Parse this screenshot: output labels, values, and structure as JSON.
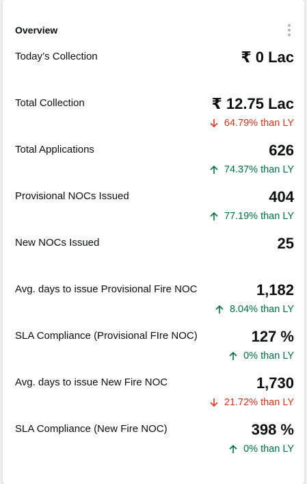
{
  "card": {
    "title": "Overview"
  },
  "colors": {
    "up": "#00703c",
    "down": "#d4351c"
  },
  "metrics": [
    {
      "label": "Today’s Collection",
      "value": "₹ 0 Lac"
    },
    {
      "label": "Total Collection",
      "value": "₹ 12.75 Lac",
      "change": "64.79% than LY",
      "trend": "down",
      "trend_icon": "arrow-down-icon"
    },
    {
      "label": "Total Applications",
      "value": "626",
      "change": "74.37% than LY",
      "trend": "up",
      "trend_icon": "arrow-up-icon"
    },
    {
      "label": "Provisional NOCs Issued",
      "value": "404",
      "change": "77.19% than LY",
      "trend": "up",
      "trend_icon": "arrow-up-icon"
    },
    {
      "label": "New NOCs Issued",
      "value": "25"
    },
    {
      "label": "Avg. days to issue Provisional Fire NOC",
      "value": "1,182",
      "change": "8.04% than LY",
      "trend": "up",
      "trend_icon": "arrow-up-icon"
    },
    {
      "label": "SLA Compliance (Provisional FIre NOC)",
      "value": "127 %",
      "change": "0% than LY",
      "trend": "up",
      "trend_icon": "arrow-up-icon"
    },
    {
      "label": "Avg. days to issue New Fire NOC",
      "value": "1,730",
      "change": "21.72% than LY",
      "trend": "down",
      "trend_icon": "arrow-down-icon"
    },
    {
      "label": "SLA Compliance (New Fire NOC)",
      "value": "398 %",
      "change": "0% than LY",
      "trend": "up",
      "trend_icon": "arrow-up-icon"
    }
  ]
}
